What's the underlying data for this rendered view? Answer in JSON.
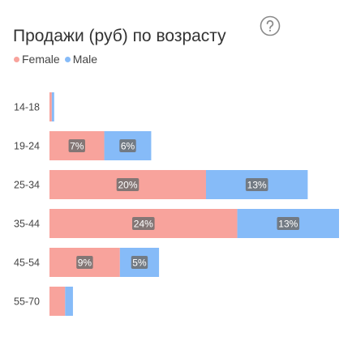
{
  "title": "Продажи (руб) по возрасту",
  "help_icon": "question-circle-icon",
  "colors": {
    "female": "#F8A39C",
    "male": "#86BBF8",
    "label_bg": "#6F6F6F"
  },
  "legend": [
    {
      "name": "Female",
      "color": "#F8A39C"
    },
    {
      "name": "Male",
      "color": "#86BBF8"
    }
  ],
  "chart_data": {
    "type": "bar",
    "orientation": "horizontal",
    "stacked": true,
    "categories": [
      "14-18",
      "19-24",
      "25-34",
      "35-44",
      "45-54",
      "55-70"
    ],
    "series": [
      {
        "name": "Female",
        "values": [
          0.3,
          7,
          20,
          24,
          9,
          2
        ]
      },
      {
        "name": "Male",
        "values": [
          0.3,
          6,
          13,
          13,
          5,
          1
        ]
      }
    ],
    "data_labels": {
      "Female": [
        "",
        "7%",
        "20%",
        "24%",
        "9%",
        ""
      ],
      "Male": [
        "",
        "6%",
        "13%",
        "13%",
        "5%",
        ""
      ]
    },
    "xlim": [
      0,
      37
    ],
    "legend_position": "top-left",
    "grid": false
  }
}
